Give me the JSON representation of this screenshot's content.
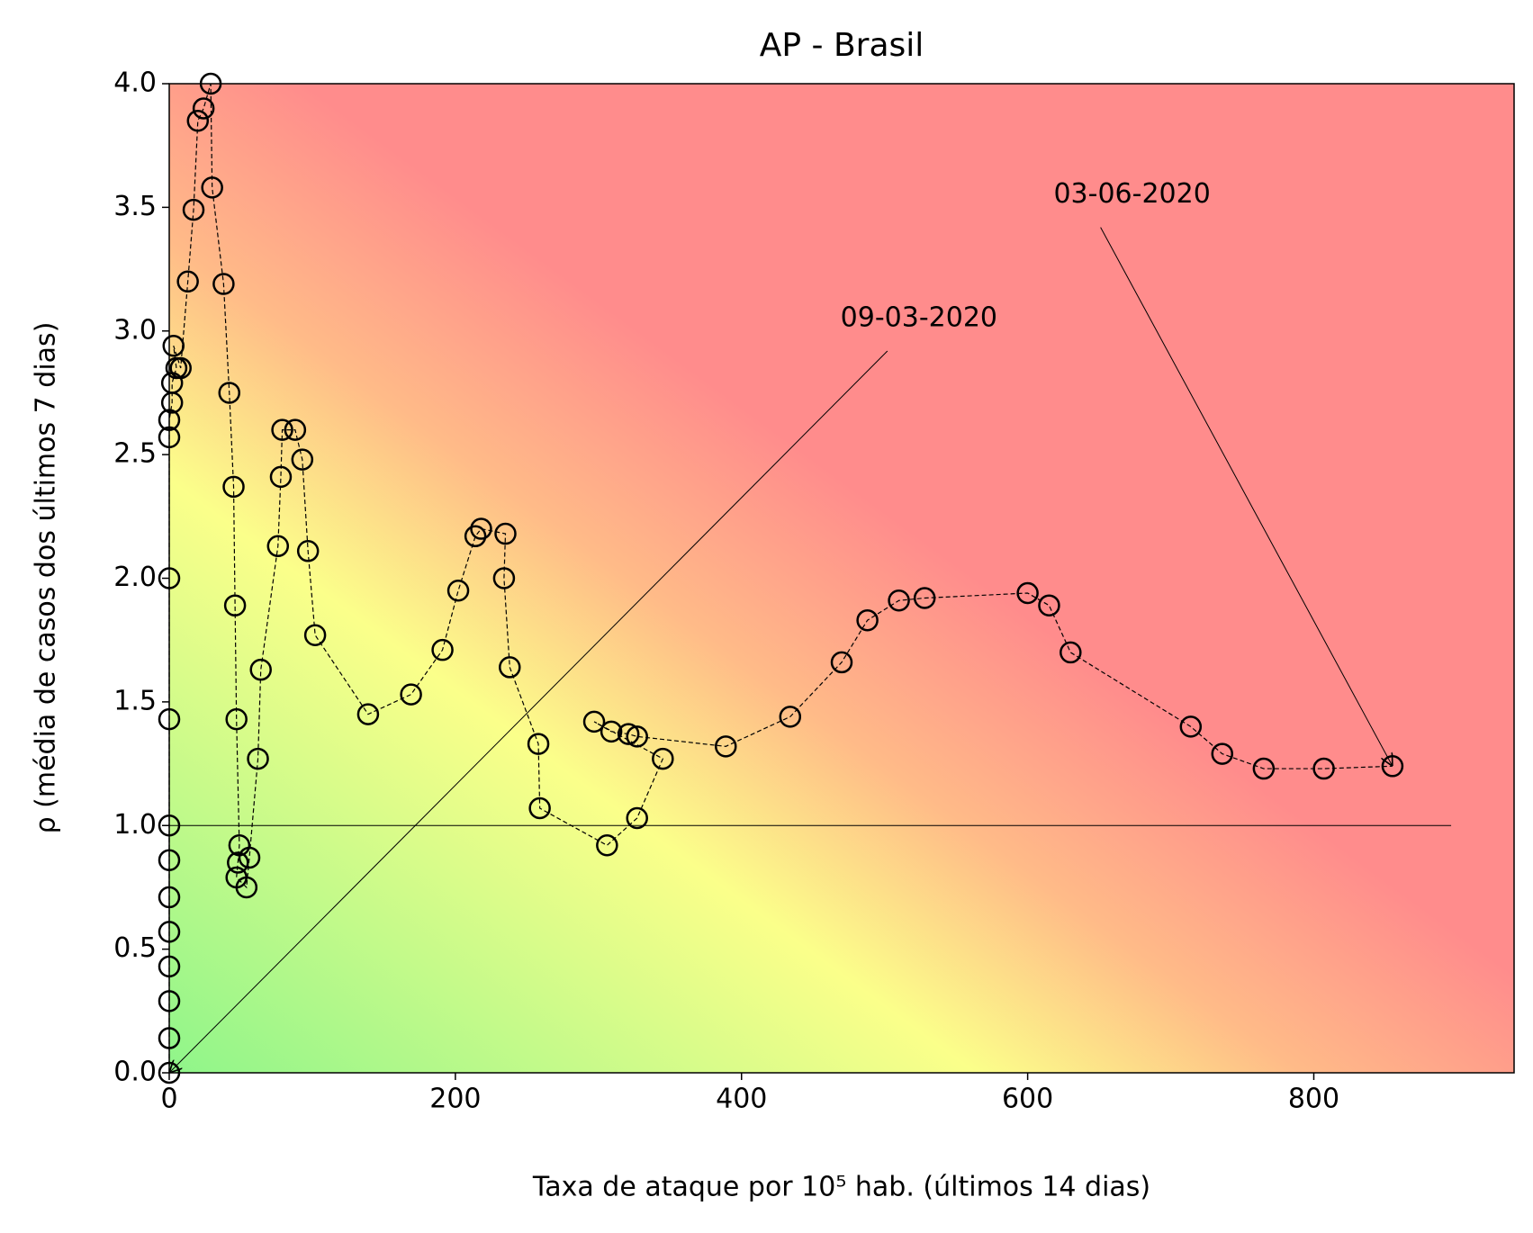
{
  "chart_data": {
    "type": "scatter",
    "title": "AP - Brasil",
    "x_label": "Taxa de ataque por 10⁵ hab. (últimos 14 dias)",
    "y_label": "ρ (média de casos dos últimos 7 dias)",
    "x": [
      0,
      0,
      0,
      0,
      0,
      0,
      0,
      0,
      0,
      0,
      0,
      0,
      2,
      2,
      5,
      3,
      8,
      13,
      17,
      20,
      24,
      29,
      30,
      38,
      42,
      45,
      46,
      47,
      49,
      48,
      47,
      54,
      56,
      62,
      64,
      76,
      78,
      79,
      88,
      93,
      97,
      102,
      139,
      169,
      191,
      202,
      214,
      218,
      235,
      234,
      238,
      258,
      259,
      306,
      327,
      345,
      297,
      309,
      321,
      327,
      389,
      434,
      470,
      488,
      510,
      528,
      600,
      615,
      630,
      714,
      736,
      765,
      807,
      855
    ],
    "y": [
      0,
      0.14,
      0.29,
      0.43,
      0.57,
      0.71,
      0.86,
      1.0,
      1.43,
      2.0,
      2.57,
      2.64,
      2.71,
      2.79,
      2.85,
      2.94,
      2.85,
      3.2,
      3.49,
      3.85,
      3.9,
      4.0,
      3.58,
      3.19,
      2.75,
      2.37,
      1.89,
      1.43,
      0.92,
      0.85,
      0.79,
      0.75,
      0.87,
      1.27,
      1.63,
      2.13,
      2.41,
      2.6,
      2.6,
      2.48,
      2.11,
      1.77,
      1.45,
      1.53,
      1.71,
      1.95,
      2.17,
      2.2,
      2.18,
      2.0,
      1.64,
      1.33,
      1.07,
      0.92,
      1.03,
      1.27,
      1.42,
      1.38,
      1.37,
      1.36,
      1.32,
      1.44,
      1.66,
      1.83,
      1.91,
      1.92,
      1.94,
      1.89,
      1.7,
      1.4,
      1.29,
      1.23,
      1.23,
      1.24
    ],
    "marker_color": "#000000",
    "xlim": [
      0,
      940
    ],
    "ylim": [
      0,
      4
    ],
    "xticks": [
      0,
      200,
      400,
      600,
      800
    ],
    "yticks": [
      {
        "value": 0,
        "label": "0.0"
      },
      {
        "value": 0.5,
        "label": "0.5"
      },
      {
        "value": 1,
        "label": "1.0"
      },
      {
        "value": 1.5,
        "label": "1.5"
      },
      {
        "value": 2,
        "label": "2.0"
      },
      {
        "value": 2.5,
        "label": "2.5"
      },
      {
        "value": 3,
        "label": "3.0"
      },
      {
        "value": 3.5,
        "label": "3.5"
      },
      {
        "value": 4,
        "label": "4.0"
      }
    ],
    "hline": {
      "y": 1,
      "xmax": 896
    },
    "background_colors": [
      "#8ff58a",
      "#fbff8a",
      "#ffbb88",
      "#ff8c8c"
    ],
    "annotations": [
      {
        "text": "09-03-2020",
        "xy": [
          0,
          0
        ],
        "xytext": [
          524,
          3.05
        ]
      },
      {
        "text": "03-06-2020",
        "xy": [
          855,
          1.24
        ],
        "xytext": [
          673,
          3.55
        ]
      }
    ]
  }
}
